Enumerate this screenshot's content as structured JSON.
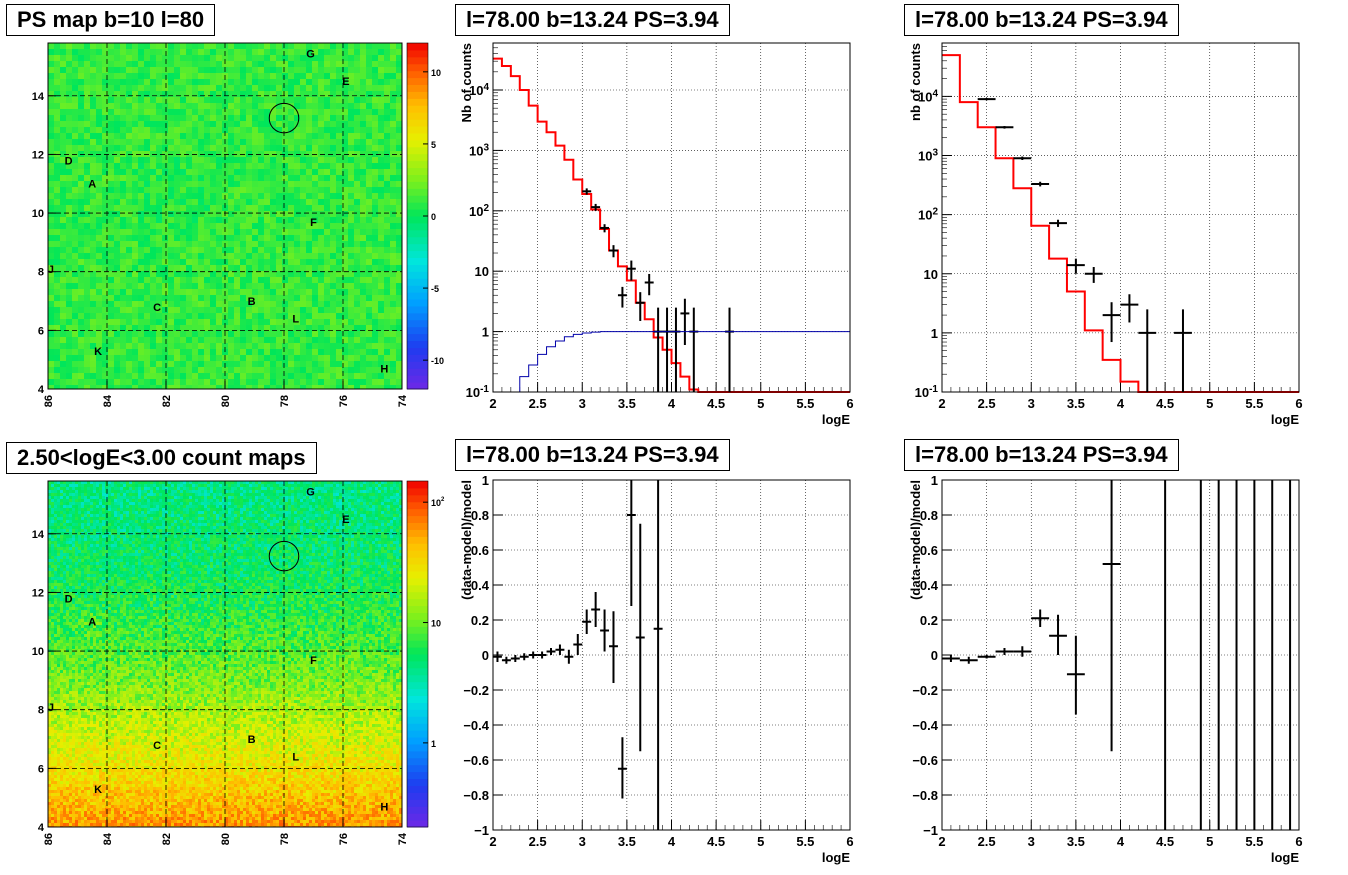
{
  "panels": {
    "map1": {
      "title": "PS map b=10 l=80",
      "xlim": [
        86,
        74
      ],
      "ylim": [
        4,
        15.8
      ],
      "xticks": [
        86,
        84,
        82,
        80,
        78,
        76,
        74
      ],
      "yticks": [
        4,
        6,
        8,
        10,
        12,
        14
      ],
      "colorbar": {
        "scale": "linear",
        "min": -12,
        "max": 12,
        "ticks": [
          -10,
          -5,
          0,
          5,
          10
        ]
      },
      "background_value": 1,
      "circle": {
        "l": 78,
        "b": 13.24,
        "r": 0.5
      },
      "sources": [
        {
          "label": "G",
          "l": 77.1,
          "b": 15.45
        },
        {
          "label": "E",
          "l": 75.9,
          "b": 14.5
        },
        {
          "label": "D",
          "l": 85.3,
          "b": 11.8
        },
        {
          "label": "A",
          "l": 84.5,
          "b": 11.0
        },
        {
          "label": "F",
          "l": 77.0,
          "b": 9.7
        },
        {
          "label": "J",
          "l": 85.9,
          "b": 8.1
        },
        {
          "label": "B",
          "l": 79.1,
          "b": 7.0
        },
        {
          "label": "C",
          "l": 82.3,
          "b": 6.8
        },
        {
          "label": "L",
          "l": 77.6,
          "b": 6.4
        },
        {
          "label": "K",
          "l": 84.3,
          "b": 5.3
        },
        {
          "label": "H",
          "l": 74.6,
          "b": 4.7
        }
      ]
    },
    "map2": {
      "title": "2.50<logE<3.00 count maps",
      "xlim": [
        86,
        74
      ],
      "ylim": [
        4,
        15.8
      ],
      "xticks": [
        86,
        84,
        82,
        80,
        78,
        76,
        74
      ],
      "yticks": [
        4,
        6,
        8,
        10,
        12,
        14
      ],
      "colorbar": {
        "scale": "log",
        "min": 0.2,
        "max": 150,
        "ticks": [
          1,
          10,
          100
        ],
        "tick_labels": [
          "1",
          "10",
          "10^2"
        ]
      },
      "circle": {
        "l": 78,
        "b": 13.24,
        "r": 0.5
      },
      "sources": [
        {
          "label": "G",
          "l": 77.1,
          "b": 15.45
        },
        {
          "label": "E",
          "l": 75.9,
          "b": 14.5
        },
        {
          "label": "D",
          "l": 85.3,
          "b": 11.8
        },
        {
          "label": "A",
          "l": 84.5,
          "b": 11.0
        },
        {
          "label": "F",
          "l": 77.0,
          "b": 9.7
        },
        {
          "label": "J",
          "l": 85.9,
          "b": 8.1
        },
        {
          "label": "B",
          "l": 79.1,
          "b": 7.0
        },
        {
          "label": "C",
          "l": 82.3,
          "b": 6.8
        },
        {
          "label": "L",
          "l": 77.6,
          "b": 6.4
        },
        {
          "label": "K",
          "l": 84.3,
          "b": 5.3
        },
        {
          "label": "H",
          "l": 74.6,
          "b": 4.7
        }
      ]
    },
    "spec1": {
      "title": "l=78.00 b=13.24 PS=3.94"
    },
    "spec2": {
      "title": "l=78.00 b=13.24 PS=3.94"
    },
    "res1": {
      "title": "l=78.00 b=13.24 PS=3.94"
    },
    "res2": {
      "title": "l=78.00 b=13.24 PS=3.94"
    }
  },
  "chart_data": [
    {
      "id": "spec1",
      "type": "line",
      "title": "l=78.00 b=13.24 PS=3.94",
      "xlabel": "logE",
      "ylabel": "Nb of counts",
      "yscale": "log",
      "xlim": [
        2,
        6
      ],
      "ylim": [
        0.1,
        60000
      ],
      "xticks": [
        2,
        2.5,
        3,
        3.5,
        4,
        4.5,
        5,
        5.5,
        6
      ],
      "yticks": [
        0.1,
        1,
        10,
        100,
        1000,
        10000
      ],
      "ytick_labels": [
        "10^-1",
        "1",
        "10",
        "10^2",
        "10^3",
        "10^4"
      ],
      "grid": true,
      "series": [
        {
          "kind": "model-step",
          "color": "#ff0000",
          "edges": [
            2.0,
            2.1,
            2.2,
            2.3,
            2.4,
            2.5,
            2.6,
            2.7,
            2.8,
            2.9,
            3.0,
            3.1,
            3.2,
            3.3,
            3.4,
            3.5,
            3.6,
            3.7,
            3.8,
            3.9,
            4.0,
            4.1,
            4.2,
            4.3,
            6.0
          ],
          "values": [
            33000,
            25000,
            17000,
            10000,
            5500,
            3000,
            2000,
            1200,
            700,
            330,
            190,
            105,
            50,
            22,
            12,
            7,
            3,
            1.6,
            0.8,
            0.5,
            0.3,
            0.18,
            0.11,
            0.1
          ]
        },
        {
          "kind": "points",
          "color": "#000000",
          "x": [
            3.05,
            3.15,
            3.25,
            3.35,
            3.45,
            3.55,
            3.65,
            3.75,
            3.85,
            3.95,
            4.05,
            4.15,
            4.25,
            4.65
          ],
          "y": [
            210,
            115,
            52,
            22,
            4,
            11,
            3,
            6.5,
            1,
            1,
            1,
            2,
            1,
            1
          ],
          "lo": [
            185,
            100,
            44,
            17,
            2.5,
            7,
            1.5,
            4,
            0.1,
            0.1,
            0.1,
            0.6,
            0.1,
            0.1
          ],
          "hi": [
            235,
            130,
            60,
            27,
            5.5,
            15,
            4.5,
            9,
            2.5,
            2.5,
            2.5,
            3.5,
            2.5,
            2.5
          ],
          "xerr": 0.05
        },
        {
          "kind": "efficiency-step",
          "color": "#0000aa",
          "edges": [
            2.0,
            2.3,
            2.4,
            2.5,
            2.6,
            2.7,
            2.8,
            2.9,
            3.0,
            3.1,
            3.2,
            3.4,
            6.0
          ],
          "values": [
            0.1,
            0.18,
            0.28,
            0.42,
            0.56,
            0.7,
            0.82,
            0.9,
            0.95,
            0.98,
            1.0,
            1.0
          ]
        }
      ]
    },
    {
      "id": "spec2",
      "type": "line",
      "title": "l=78.00 b=13.24 PS=3.94",
      "xlabel": "logE",
      "ylabel": "nb of counts",
      "yscale": "log",
      "xlim": [
        2,
        6
      ],
      "ylim": [
        0.1,
        80000
      ],
      "xticks": [
        2,
        2.5,
        3,
        3.5,
        4,
        4.5,
        5,
        5.5,
        6
      ],
      "yticks": [
        0.1,
        1,
        10,
        100,
        1000,
        10000
      ],
      "ytick_labels": [
        "10^-1",
        "1",
        "10",
        "10^2",
        "10^3",
        "10^4"
      ],
      "grid": true,
      "series": [
        {
          "kind": "model-step",
          "color": "#ff0000",
          "edges": [
            2.0,
            2.2,
            2.4,
            2.6,
            2.8,
            3.0,
            3.2,
            3.4,
            3.6,
            3.8,
            4.0,
            4.2,
            4.4,
            6.0
          ],
          "values": [
            50000,
            8000,
            3000,
            900,
            280,
            65,
            18,
            5,
            1.1,
            0.35,
            0.15,
            0.1,
            0.1
          ]
        },
        {
          "kind": "points",
          "color": "#000000",
          "x": [
            2.5,
            2.7,
            2.9,
            3.1,
            3.3,
            3.5,
            3.7,
            3.9,
            4.1,
            4.3,
            4.7
          ],
          "y": [
            9000,
            3000,
            900,
            330,
            72,
            14,
            10,
            2,
            3,
            1,
            1
          ],
          "lo": [
            8600,
            2850,
            840,
            300,
            62,
            10,
            7,
            0.7,
            1.5,
            0.1,
            0.1
          ],
          "hi": [
            9400,
            3150,
            960,
            360,
            82,
            18,
            13,
            3.3,
            4.5,
            2.5,
            2.5
          ],
          "xerr": 0.1
        }
      ]
    },
    {
      "id": "res1",
      "type": "scatter",
      "title": "l=78.00 b=13.24 PS=3.94",
      "xlabel": "logE",
      "ylabel": "(data-model)/model",
      "xlim": [
        2,
        6
      ],
      "ylim": [
        -1,
        1
      ],
      "xticks": [
        2,
        2.5,
        3,
        3.5,
        4,
        4.5,
        5,
        5.5,
        6
      ],
      "yticks": [
        -1,
        -0.8,
        -0.6,
        -0.4,
        -0.2,
        0,
        0.2,
        0.4,
        0.6,
        0.8,
        1
      ],
      "grid": true,
      "series": [
        {
          "kind": "points",
          "color": "#000000",
          "x": [
            2.05,
            2.15,
            2.25,
            2.35,
            2.45,
            2.55,
            2.65,
            2.75,
            2.85,
            2.95,
            3.05,
            3.15,
            3.25,
            3.35,
            3.45,
            3.55,
            3.65,
            3.75,
            3.85
          ],
          "y": [
            -0.01,
            -0.03,
            -0.02,
            -0.01,
            0.0,
            0.0,
            0.02,
            0.03,
            -0.01,
            0.06,
            0.19,
            0.26,
            0.14,
            0.05,
            -0.65,
            0.8,
            0.1,
            null,
            0.15
          ],
          "lo": [
            -0.04,
            -0.05,
            -0.04,
            -0.03,
            -0.02,
            -0.02,
            0.0,
            0.0,
            -0.05,
            0.0,
            0.12,
            0.16,
            0.02,
            -0.16,
            -0.82,
            0.28,
            -0.55,
            null,
            -1.0
          ],
          "hi": [
            0.02,
            -0.01,
            0.0,
            0.01,
            0.02,
            0.02,
            0.04,
            0.06,
            0.03,
            0.12,
            0.26,
            0.36,
            0.26,
            0.25,
            -0.47,
            1.0,
            0.75,
            null,
            1.0
          ],
          "xerr": 0.05
        }
      ]
    },
    {
      "id": "res2",
      "type": "scatter",
      "title": "l=78.00 b=13.24 PS=3.94",
      "xlabel": "logE",
      "ylabel": "(data-model)/model",
      "xlim": [
        2,
        6
      ],
      "ylim": [
        -1,
        1
      ],
      "xticks": [
        2,
        2.5,
        3,
        3.5,
        4,
        4.5,
        5,
        5.5,
        6
      ],
      "yticks": [
        -1,
        -0.8,
        -0.6,
        -0.4,
        -0.2,
        0,
        0.2,
        0.4,
        0.6,
        0.8,
        1
      ],
      "grid": true,
      "series": [
        {
          "kind": "points",
          "color": "#000000",
          "x": [
            2.1,
            2.3,
            2.5,
            2.7,
            2.9,
            3.1,
            3.3,
            3.5,
            3.9,
            4.5,
            4.9,
            5.1,
            5.3,
            5.5,
            5.7,
            5.9
          ],
          "y": [
            -0.02,
            -0.03,
            -0.01,
            0.02,
            0.02,
            0.21,
            0.11,
            -0.11,
            0.52,
            null,
            null,
            null,
            null,
            null,
            null,
            null
          ],
          "lo": [
            -0.04,
            -0.05,
            -0.02,
            0.0,
            -0.01,
            0.16,
            0.0,
            -0.34,
            -0.55,
            -1,
            -1,
            -1,
            -1,
            -1,
            -1,
            -1
          ],
          "hi": [
            0.0,
            -0.01,
            0.0,
            0.04,
            0.05,
            0.26,
            0.23,
            0.11,
            1.0,
            1,
            1,
            1,
            1,
            1,
            1,
            1
          ],
          "xerr": 0.1
        }
      ]
    }
  ]
}
